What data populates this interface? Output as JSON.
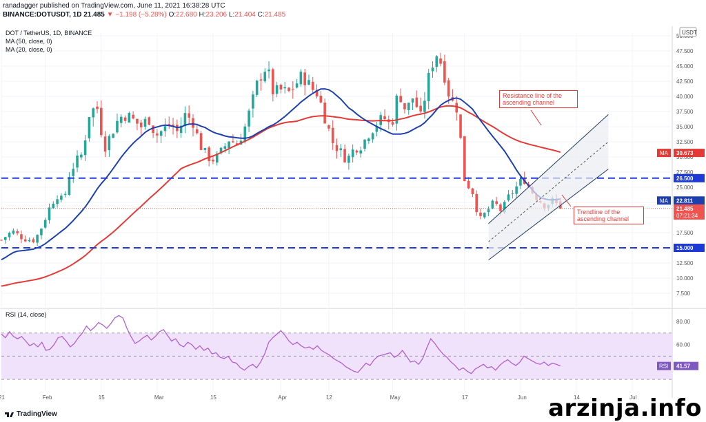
{
  "header": {
    "publisher": "ranadagger published on TradingView.com, June 11, 2021 16:38:28 UTC",
    "symbol": "BINANCE:DOTUSDT, 1D",
    "last": "21.485",
    "change": "▼ −1.198 (−5.28%)",
    "o_label": "O:",
    "o": "22.680",
    "h_label": "H:",
    "h": "23.206",
    "l_label": "L:",
    "l": "21.404",
    "c_label": "C:",
    "c": "21.485"
  },
  "legend": {
    "title": "DOT / TetherUS, 1D, BINANCE",
    "ma50": "MA (50, close, 0)",
    "ma20": "MA (20, close, 0)",
    "rsi": "RSI (14, close)"
  },
  "callouts": {
    "resistance": "Resistance line of the ascending channel",
    "trendline": "Trendline of the ascending channel"
  },
  "footer": {
    "logo": "TradingView"
  },
  "watermark": "arzinja.info",
  "colors": {
    "up": "#26a69a",
    "down": "#ef5350",
    "ma50": "#e53935",
    "ma20": "#1e40af",
    "level": "#1e3ad6",
    "rsi_line": "#b15fcf",
    "rsi_band": "#f0e2fb",
    "annotation": "#e53935"
  },
  "chart_data": {
    "type": "candlestick",
    "title": "DOT / TetherUS, 1D, BINANCE",
    "currency": "USDT",
    "ylim": [
      5,
      52
    ],
    "y_ticks": [
      "7.500",
      "10.000",
      "12.500",
      "15.000",
      "17.500",
      "20.000",
      "22.500",
      "25.000",
      "27.500",
      "30.000",
      "32.500",
      "35.000",
      "37.500",
      "40.000",
      "42.500",
      "45.000",
      "47.500",
      "50.000"
    ],
    "x_ticks": [
      "21",
      "Feb",
      "15",
      "Mar",
      "15",
      "Apr",
      "12",
      "May",
      "17",
      "Jun",
      "14",
      "Jul"
    ],
    "x_tick_days": [
      0,
      11,
      25,
      39,
      53,
      70,
      82,
      98,
      116,
      130,
      144,
      158
    ],
    "x_range_days": [
      0,
      168
    ],
    "last_day": 140,
    "horizontal_levels": [
      26.5,
      15.0
    ],
    "price_labels": [
      {
        "label": "MA",
        "value": "30.673",
        "color": "#e53935"
      },
      {
        "label": "",
        "value": "26.500",
        "color": "#1e3ad6"
      },
      {
        "label": "MA",
        "value": "22.811",
        "color": "#1e40af"
      },
      {
        "label": "",
        "value": "21.485",
        "sub": "07:21:34",
        "color": "#ef5350"
      },
      {
        "label": "",
        "value": "15.000",
        "color": "#1e3ad6"
      }
    ],
    "ma50_last": 30.673,
    "ma20_last": 22.811,
    "rsi": {
      "ylim": [
        20,
        90
      ],
      "y_ticks": [
        "40.00",
        "60.00",
        "80.00"
      ],
      "band": [
        30,
        70
      ],
      "last": "41.57",
      "label": "RSI",
      "values": [
        69,
        66,
        71,
        67,
        65,
        67,
        63,
        59,
        61,
        58,
        62,
        55,
        56,
        60,
        66,
        67,
        63,
        58,
        61,
        66,
        70,
        76,
        72,
        75,
        79,
        77,
        74,
        78,
        83,
        85,
        83,
        74,
        67,
        61,
        63,
        66,
        68,
        64,
        67,
        71,
        73,
        68,
        63,
        65,
        60,
        58,
        62,
        60,
        56,
        59,
        55,
        57,
        52,
        53,
        49,
        48,
        50,
        45,
        44,
        40,
        38,
        41,
        43,
        40,
        45,
        52,
        62,
        66,
        69,
        72,
        68,
        63,
        60,
        62,
        59,
        57,
        58,
        56,
        59,
        55,
        53,
        51,
        48,
        46,
        44,
        41,
        39,
        37,
        36,
        40,
        44,
        42,
        47,
        50,
        51,
        52,
        53,
        49,
        51,
        55,
        50,
        45,
        46,
        43,
        48,
        57,
        65,
        61,
        56,
        52,
        49,
        45,
        42,
        38,
        40,
        37,
        35,
        39,
        41,
        43,
        40,
        41,
        38,
        42,
        45,
        47,
        44,
        42,
        45,
        50,
        48,
        46,
        44,
        43,
        45,
        42,
        44,
        43,
        41.57
      ]
    }
  }
}
